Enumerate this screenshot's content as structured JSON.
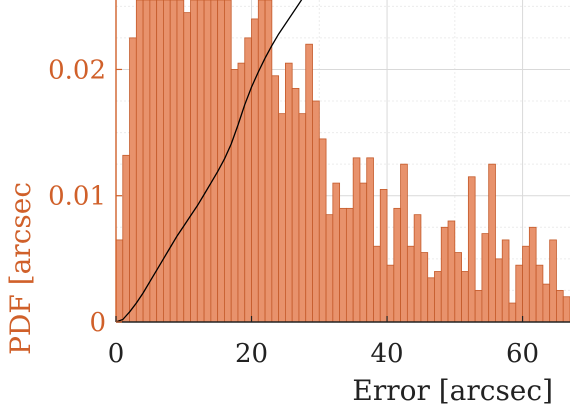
{
  "chart_data": {
    "type": "bar",
    "xlabel": "Error [arcsec]",
    "ylabel": "PDF [arcsec",
    "xlim": [
      0,
      67
    ],
    "ylim": [
      0,
      0.0255
    ],
    "x_ticks": [
      "0",
      "20",
      "40",
      "60"
    ],
    "y_ticks": [
      "0",
      "0.01",
      "0.02"
    ],
    "grid": true,
    "colors": {
      "bars": "#e8926c",
      "bar_edge": "#c45a2a",
      "y_axis": "#d0602a",
      "cdf_line": "#000000"
    },
    "bins": {
      "start": 0,
      "width": 1
    },
    "values": [
      0.0065,
      0.0132,
      0.0225,
      0.0255,
      0.0255,
      0.0255,
      0.0255,
      0.0255,
      0.0255,
      0.0255,
      0.0245,
      0.0255,
      0.0255,
      0.0255,
      0.0255,
      0.0255,
      0.0255,
      0.02,
      0.0205,
      0.0225,
      0.024,
      0.0255,
      0.0255,
      0.0195,
      0.0165,
      0.0205,
      0.0185,
      0.0165,
      0.022,
      0.0175,
      0.0145,
      0.0085,
      0.011,
      0.009,
      0.009,
      0.013,
      0.011,
      0.013,
      0.006,
      0.0105,
      0.0045,
      0.009,
      0.0125,
      0.006,
      0.0085,
      0.0055,
      0.0035,
      0.004,
      0.0075,
      0.008,
      0.0055,
      0.004,
      0.0115,
      0.0025,
      0.007,
      0.0125,
      0.005,
      0.0065,
      0.0015,
      0.0045,
      0.006,
      0.0075,
      0.0045,
      0.003,
      0.0065,
      0.0025,
      0.002
    ],
    "cdf_line": {
      "x": [
        0,
        1,
        2,
        3,
        4,
        5,
        6,
        7,
        8,
        9,
        10,
        11,
        12,
        13,
        14,
        15,
        16,
        17,
        18,
        19,
        20,
        21,
        22,
        23,
        24,
        25,
        26,
        27,
        27.5
      ],
      "y": [
        0,
        0.0002,
        0.0008,
        0.0015,
        0.0023,
        0.0032,
        0.0041,
        0.005,
        0.0059,
        0.0068,
        0.0076,
        0.0084,
        0.0092,
        0.0101,
        0.011,
        0.0119,
        0.0129,
        0.0141,
        0.0156,
        0.0172,
        0.0186,
        0.0198,
        0.0209,
        0.0219,
        0.0228,
        0.0236,
        0.0244,
        0.0252,
        0.0256
      ]
    }
  }
}
